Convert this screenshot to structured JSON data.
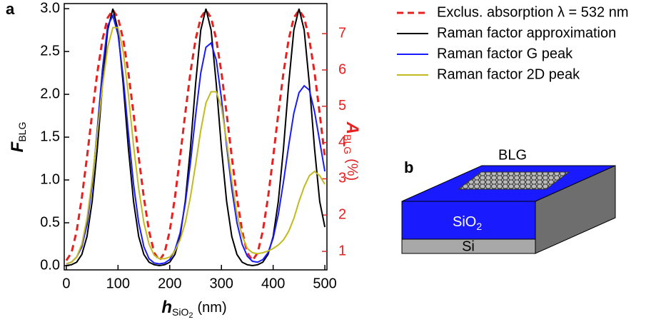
{
  "chart_data": {
    "type": "line",
    "panel_label": "a",
    "y_label": {
      "main": "F",
      "sub": "BLG"
    },
    "y2_label": {
      "main": "A",
      "sub": "BLG",
      "unit": "(%)"
    },
    "x_label": {
      "main": "h",
      "sub": "SiO",
      "sub2": "2",
      "unit": "(nm)"
    },
    "xlim": [
      -4,
      504
    ],
    "xticks": [
      0,
      100,
      200,
      300,
      400,
      500
    ],
    "ylim": [
      -0.05,
      3.06
    ],
    "yticks": [
      {
        "value": 0,
        "label": "0.0"
      },
      0.5,
      {
        "value": 1,
        "label": "1.0"
      },
      1.5,
      {
        "value": 2,
        "label": "2.0"
      },
      2.5,
      {
        "value": 3,
        "label": "3.0"
      }
    ],
    "y2lim": [
      0.49,
      7.83
    ],
    "y2ticks": [
      1,
      2,
      3,
      4,
      5,
      6,
      7
    ],
    "y2color": "#e82020",
    "grid": false,
    "legend": "outside-right",
    "x": [
      0,
      10,
      20,
      30,
      40,
      50,
      60,
      70,
      80,
      90,
      100,
      110,
      120,
      130,
      140,
      150,
      160,
      170,
      180,
      190,
      200,
      210,
      220,
      230,
      240,
      250,
      260,
      270,
      280,
      290,
      300,
      310,
      320,
      330,
      340,
      350,
      360,
      370,
      380,
      390,
      400,
      410,
      420,
      430,
      440,
      450,
      460,
      470,
      480,
      490,
      500
    ],
    "series": [
      {
        "name": "Exclus. absorption λ = 532 nm",
        "color": "#e82020",
        "style": "dashed",
        "axis": "y2",
        "values": [
          0.75,
          0.96,
          1.56,
          2.48,
          3.6,
          4.8,
          5.93,
          6.84,
          7.44,
          7.65,
          7.44,
          6.84,
          5.93,
          4.8,
          3.6,
          2.48,
          1.56,
          0.96,
          0.75,
          0.96,
          1.56,
          2.48,
          3.6,
          4.8,
          5.93,
          6.84,
          7.44,
          7.65,
          7.44,
          6.84,
          5.93,
          4.8,
          3.6,
          2.48,
          1.56,
          0.96,
          0.75,
          0.96,
          1.56,
          2.48,
          3.6,
          4.8,
          5.93,
          6.84,
          7.44,
          7.65,
          7.44,
          6.84,
          5.93,
          4.8,
          3.6
        ]
      },
      {
        "name": "Raman factor approximation",
        "color": "#000000",
        "style": "solid",
        "values": [
          0.0,
          0.01,
          0.04,
          0.13,
          0.34,
          0.75,
          1.37,
          2.12,
          2.75,
          3.0,
          2.75,
          2.12,
          1.37,
          0.75,
          0.34,
          0.13,
          0.04,
          0.01,
          0.0,
          0.01,
          0.04,
          0.13,
          0.34,
          0.75,
          1.37,
          2.12,
          2.75,
          3.0,
          2.75,
          2.12,
          1.37,
          0.75,
          0.34,
          0.13,
          0.04,
          0.01,
          0.0,
          0.01,
          0.04,
          0.13,
          0.34,
          0.75,
          1.37,
          2.12,
          2.75,
          3.0,
          2.75,
          2.12,
          1.37,
          0.75,
          0.45
        ]
      },
      {
        "name": "Raman factor G peak",
        "color": "#1a1aff",
        "style": "solid",
        "values": [
          0.02,
          0.04,
          0.1,
          0.22,
          0.48,
          0.95,
          1.6,
          2.3,
          2.8,
          2.92,
          2.7,
          2.2,
          1.55,
          0.95,
          0.5,
          0.22,
          0.08,
          0.03,
          0.02,
          0.03,
          0.07,
          0.18,
          0.38,
          0.72,
          1.2,
          1.75,
          2.25,
          2.55,
          2.6,
          2.4,
          1.95,
          1.4,
          0.9,
          0.5,
          0.25,
          0.11,
          0.05,
          0.04,
          0.07,
          0.15,
          0.32,
          0.6,
          0.98,
          1.4,
          1.78,
          2.02,
          2.1,
          2.05,
          1.8,
          1.45,
          1.1
        ]
      },
      {
        "name": "Raman factor 2D peak",
        "color": "#c2ba1e",
        "style": "solid",
        "values": [
          0.02,
          0.04,
          0.1,
          0.25,
          0.55,
          1.0,
          1.55,
          2.1,
          2.55,
          2.78,
          2.78,
          2.5,
          2.0,
          1.4,
          0.9,
          0.5,
          0.25,
          0.12,
          0.08,
          0.08,
          0.1,
          0.17,
          0.3,
          0.5,
          0.8,
          1.18,
          1.58,
          1.9,
          2.03,
          2.03,
          1.85,
          1.45,
          1.0,
          0.6,
          0.35,
          0.2,
          0.15,
          0.14,
          0.15,
          0.17,
          0.2,
          0.24,
          0.3,
          0.4,
          0.55,
          0.75,
          0.92,
          1.05,
          1.1,
          1.05,
          0.95
        ]
      }
    ]
  },
  "diagram": {
    "panel_label": "b",
    "top": "BLG",
    "oxide": "SiO",
    "oxide_sub": "2",
    "substrate": "Si"
  }
}
